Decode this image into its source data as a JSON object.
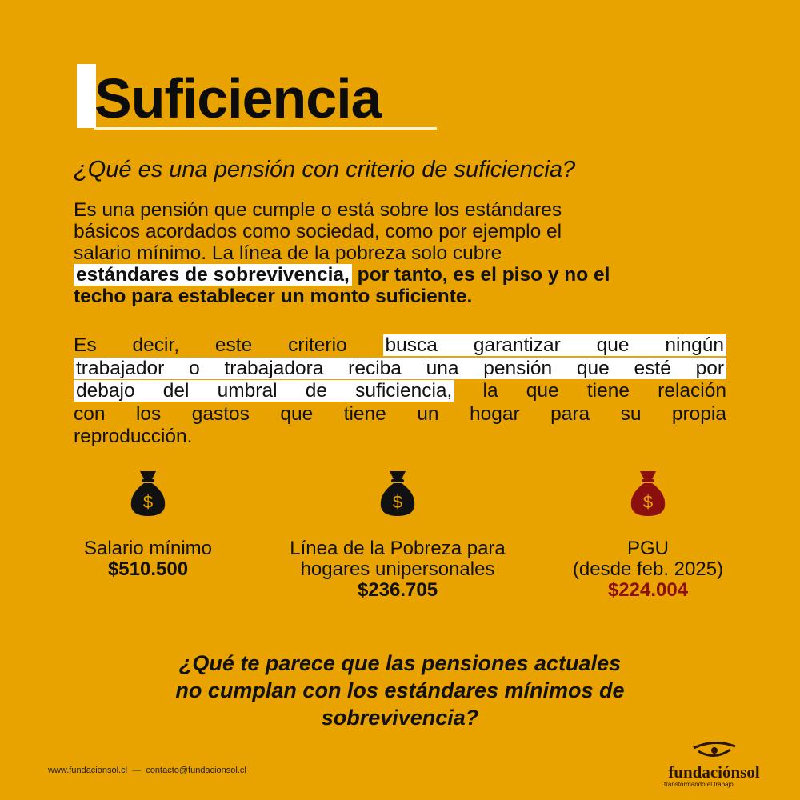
{
  "header": {
    "title": "Suficiencia"
  },
  "question": "¿Qué es una pensión con criterio de suficiencia?",
  "paragraph1": [
    [
      {
        "text": "Es una pensión que cumple o está sobre los estándares",
        "hl": false,
        "bold": false
      }
    ],
    [
      {
        "text": "básicos acordados como sociedad, como por ejemplo el",
        "hl": false,
        "bold": false
      }
    ],
    [
      {
        "text": "salario mínimo. La línea de la pobreza solo cubre",
        "hl": false,
        "bold": false
      }
    ],
    [
      {
        "text": "estándares de sobrevivencia,",
        "hl": true,
        "bold": true
      },
      {
        "text": " por tanto, es el piso y no el",
        "hl": false,
        "bold": true
      }
    ],
    [
      {
        "text": "techo para establecer un monto suficiente.",
        "hl": false,
        "bold": true
      }
    ]
  ],
  "paragraph2": [
    [
      {
        "text": "Es decir, este criterio ",
        "hl": false
      },
      {
        "text": "busca garantizar que ningún",
        "hl": true
      }
    ],
    [
      {
        "text": "trabajador o trabajadora reciba una pensión que esté por",
        "hl": true
      }
    ],
    [
      {
        "text": "debajo del umbral de suficiencia,",
        "hl": true
      },
      {
        "text": " la que tiene relación",
        "hl": false
      }
    ],
    [
      {
        "text": "con los gastos que tiene un hogar para su propia",
        "hl": false
      }
    ],
    [
      {
        "text": "reproducción.",
        "hl": false
      }
    ]
  ],
  "stats": [
    {
      "label": "Salario mínimo",
      "sublabel": "",
      "value": "$510.500",
      "icon": "money-bag-icon",
      "color": "#111111"
    },
    {
      "label": "Línea de la Pobreza para",
      "sublabel": "hogares unipersonales",
      "value": "$236.705",
      "icon": "money-bag-icon",
      "color": "#111111"
    },
    {
      "label": "PGU",
      "sublabel": "(desde feb. 2025)",
      "value": "$224.004",
      "icon": "money-bag-icon",
      "color": "#8B0F0F"
    }
  ],
  "bottom_question": [
    "¿Qué te parece que las pensiones actuales",
    "no cumplan con los estándares mínimos de",
    "sobrevivencia?"
  ],
  "footer": {
    "website": "www.fundacionsol.cl",
    "separator": "—",
    "email": "contacto@fundacionsol.cl"
  },
  "logo": {
    "name": "fundaciónsol",
    "tagline": "transformando el trabajo"
  },
  "colors": {
    "background": "#E9A300",
    "highlight": "#FFFFFF",
    "accent_red": "#8B0F0F"
  }
}
